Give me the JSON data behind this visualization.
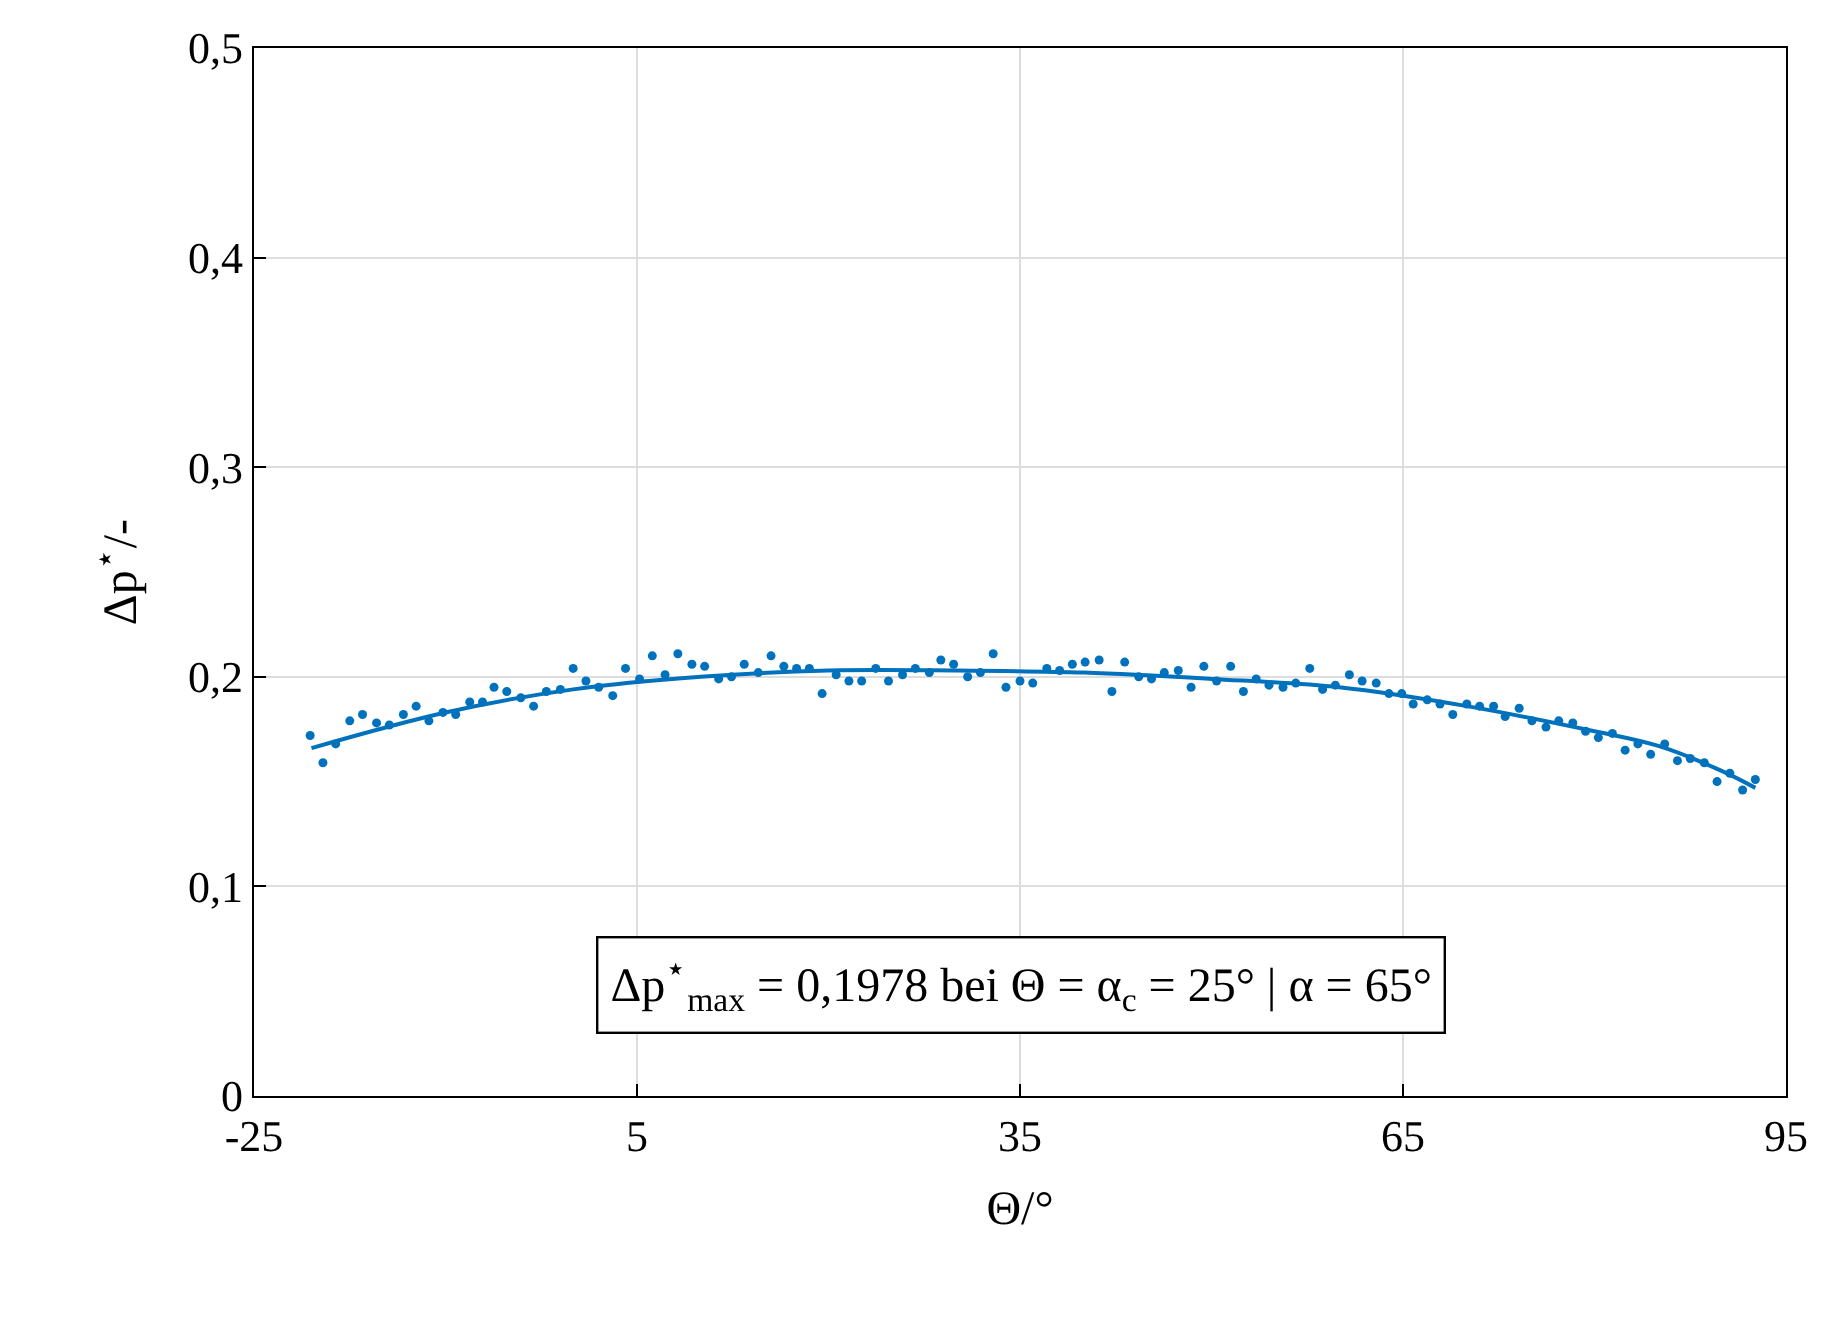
{
  "chart_data": {
    "type": "scatter",
    "xlabel": "Θ/°",
    "ylabel": "Δp$^{⋆}$/-",
    "xlim": [
      -25,
      95
    ],
    "xticks": [
      -25,
      5,
      35,
      65,
      95
    ],
    "ylim": [
      0,
      0.5
    ],
    "yticks": [
      0,
      {
        "value": 0.1,
        "label": "0,1"
      },
      {
        "value": 0.2,
        "label": "0,2"
      },
      {
        "value": 0.3,
        "label": "0,3"
      },
      {
        "value": 0.4,
        "label": "0,4"
      },
      {
        "value": 0.5,
        "label": "0,5"
      }
    ],
    "grid": true,
    "marker": "circle",
    "annotations": [
      "Δp$^{⋆}$$_{max}$ = 0,1978 bei Θ = α$_{c}$ = 25° | α = 65°"
    ],
    "series": [
      {
        "color": "#0072bd",
        "x": [
          -20.6,
          -19.6,
          -18.6,
          -17.5,
          -16.5,
          -15.4,
          -14.4,
          -13.3,
          -12.3,
          -11.3,
          -10.2,
          -9.2,
          -8.1,
          -7.1,
          -6.2,
          -5.2,
          -4.1,
          -3.1,
          -2.1,
          -1.0,
          0.0,
          1.0,
          2.0,
          3.1,
          4.1,
          5.2,
          6.2,
          7.2,
          8.2,
          9.3,
          10.3,
          11.4,
          12.4,
          13.4,
          14.5,
          15.5,
          16.5,
          17.5,
          18.5,
          19.5,
          20.6,
          21.6,
          22.6,
          23.7,
          24.7,
          25.8,
          26.8,
          27.9,
          28.8,
          29.8,
          30.9,
          31.9,
          32.9,
          33.9,
          35.0,
          36.0,
          37.1,
          38.1,
          39.1,
          40.1,
          41.2,
          42.2,
          43.2,
          44.3,
          45.3,
          46.3,
          47.4,
          48.4,
          49.4,
          50.4,
          51.5,
          52.5,
          53.5,
          54.5,
          55.6,
          56.6,
          57.7,
          58.7,
          59.7,
          60.8,
          61.8,
          62.9,
          63.9,
          64.9,
          65.8,
          66.9,
          67.9,
          68.9,
          70.0,
          71.0,
          72.1,
          73.0,
          74.1,
          75.1,
          76.2,
          77.2,
          78.3,
          79.3,
          80.3,
          81.4,
          82.4,
          83.4,
          84.4,
          85.5,
          86.5,
          87.5,
          88.6,
          89.6,
          90.6,
          91.6,
          92.6
        ],
        "values": [
          0.172,
          0.159,
          0.168,
          0.179,
          0.182,
          0.178,
          0.177,
          0.182,
          0.186,
          0.179,
          0.183,
          0.182,
          0.188,
          0.188,
          0.195,
          0.193,
          0.19,
          0.186,
          0.193,
          0.194,
          0.204,
          0.198,
          0.195,
          0.191,
          0.204,
          0.199,
          0.21,
          0.201,
          0.211,
          0.206,
          0.205,
          0.199,
          0.2,
          0.206,
          0.202,
          0.21,
          0.205,
          0.204,
          0.204,
          0.192,
          0.201,
          0.198,
          0.198,
          0.204,
          0.198,
          0.201,
          0.204,
          0.202,
          0.208,
          0.206,
          0.2,
          0.202,
          0.211,
          0.195,
          0.198,
          0.197,
          0.204,
          0.203,
          0.206,
          0.207,
          0.208,
          0.193,
          0.207,
          0.2,
          0.199,
          0.202,
          0.203,
          0.195,
          0.205,
          0.198,
          0.205,
          0.193,
          0.199,
          0.196,
          0.195,
          0.197,
          0.204,
          0.194,
          0.196,
          0.201,
          0.198,
          0.197,
          0.192,
          0.192,
          0.187,
          0.189,
          0.187,
          0.182,
          0.187,
          0.186,
          0.186,
          0.181,
          0.185,
          0.179,
          0.176,
          0.179,
          0.178,
          0.174,
          0.171,
          0.173,
          0.165,
          0.168,
          0.163,
          0.168,
          0.16,
          0.161,
          0.159,
          0.15,
          0.154,
          0.146,
          0.151
        ]
      },
      {
        "type": "line",
        "marker": "none",
        "color": "#0072bd",
        "x": [
          -20.5,
          -10,
          0,
          10,
          20,
          30,
          40,
          50,
          60,
          70,
          80,
          85,
          90,
          92.6
        ],
        "values": [
          0.166,
          0.183,
          0.194,
          0.2,
          0.203,
          0.203,
          0.202,
          0.199,
          0.195,
          0.186,
          0.174,
          0.167,
          0.155,
          0.147
        ]
      }
    ]
  }
}
